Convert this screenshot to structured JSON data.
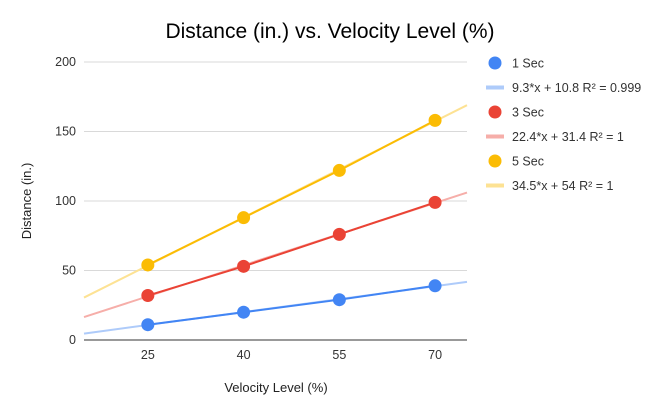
{
  "chart_data": {
    "type": "scatter",
    "title": "Distance (in.) vs. Velocity Level (%)",
    "xlabel": "Velocity Level (%)",
    "ylabel": "Distance (in.)",
    "x_categories": [
      "25",
      "40",
      "55",
      "70"
    ],
    "ylim": [
      0,
      200
    ],
    "yticks": [
      0,
      50,
      100,
      150,
      200
    ],
    "grid": "horizontal",
    "legend_position": "right",
    "series": [
      {
        "name": "1 Sec",
        "color": "#4285f4",
        "trend_color": "#aecbfa",
        "trendline_label": "9.3*x + 10.8 R² = 0.999",
        "x": [
          25,
          40,
          55,
          70
        ],
        "y": [
          11,
          20,
          29,
          39
        ]
      },
      {
        "name": "3 Sec",
        "color": "#ea4335",
        "trend_color": "#f6aea9",
        "trendline_label": "22.4*x + 31.4 R² = 1",
        "x": [
          25,
          40,
          55,
          70
        ],
        "y": [
          32,
          53,
          76,
          99
        ]
      },
      {
        "name": "5 Sec",
        "color": "#fbbc04",
        "trend_color": "#fde293",
        "trendline_label": "34.5*x + 54 R² = 1",
        "x": [
          25,
          40,
          55,
          70
        ],
        "y": [
          54,
          88,
          122,
          158
        ]
      }
    ]
  }
}
